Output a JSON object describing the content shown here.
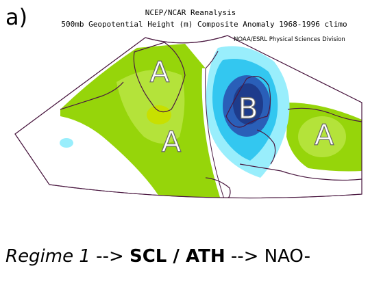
{
  "panel_label": "a)",
  "title_line1": "NCEP/NCAR Reanalysis",
  "title_line2": "500mb Geopotential Height (m) Composite Anomaly 1968-1996 climo",
  "credit": "NOAA/ESRL Physical Sciences Division",
  "map_labels": {
    "a_greenland": "A",
    "a_atlantic": "A",
    "b_scandinavia": "B",
    "a_russia": "A"
  },
  "caption": {
    "part1": "Regime 1",
    "arrow1": " --> ",
    "part2": "SCL / ATH",
    "arrow2": " --> ",
    "part3": "NAO-"
  },
  "colors": {
    "positive_light": "#b4e33a",
    "positive_mid": "#96d50a",
    "positive_high": "#c8e000",
    "negative_light": "#99eefc",
    "negative_mid": "#33c7f0",
    "negative_dark": "#2a5fb8",
    "negative_core": "#1e3c8c",
    "coast": "#4a1840"
  }
}
